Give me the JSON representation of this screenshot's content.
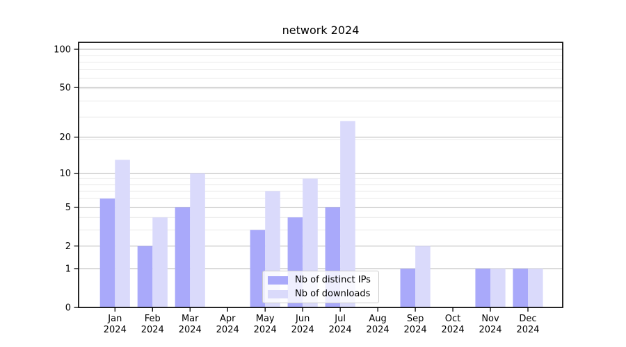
{
  "chart_data": {
    "type": "bar",
    "title": "network 2024",
    "categories": [
      "Jan",
      "Feb",
      "Mar",
      "Apr",
      "May",
      "Jun",
      "Jul",
      "Aug",
      "Sep",
      "Oct",
      "Nov",
      "Dec"
    ],
    "category_year": "2024",
    "series": [
      {
        "name": "Nb of distinct IPs",
        "color": "#a9a9fa",
        "values": [
          6,
          2,
          5,
          0,
          3,
          4,
          5,
          0,
          1,
          0,
          1,
          1
        ]
      },
      {
        "name": "Nb of downloads",
        "color": "#dadafb",
        "values": [
          13,
          4,
          10,
          0,
          7,
          9,
          27,
          0,
          2,
          0,
          1,
          1
        ]
      }
    ],
    "y_axis": {
      "scale": "log1p",
      "ticks": [
        0,
        1,
        2,
        5,
        10,
        20,
        50,
        100
      ],
      "minor_gridlines": [
        3,
        4,
        6,
        7,
        8,
        9,
        19,
        29,
        39,
        49,
        59,
        69,
        79,
        89
      ],
      "range": [
        0,
        100
      ]
    },
    "xlabel": "",
    "ylabel": "",
    "grid": {
      "major_color": "#b2b2b2",
      "minor_color": "#e9e9e9"
    },
    "legend": {
      "position": "bottom-center"
    },
    "colors": {
      "spine": "#000000",
      "text": "#000000",
      "background": "#ffffff"
    }
  }
}
